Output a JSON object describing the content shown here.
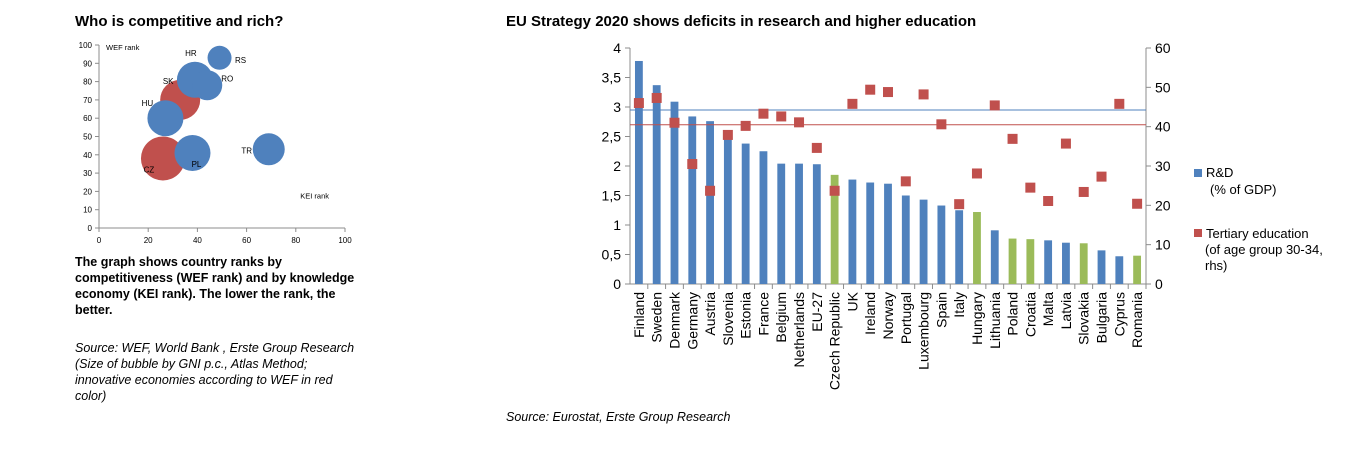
{
  "left_panel": {
    "title": "Who is competitive and rich?",
    "description": "The graph shows country ranks by competitiveness (WEF rank) and by knowledge economy (KEI rank). The lower the rank, the better.",
    "source": "Source: WEF, World Bank , Erste Group Research (Size of bubble by GNI p.c., Atlas Method; innovative economies according to WEF in red color)"
  },
  "right_panel": {
    "title": "EU Strategy 2020 shows deficits in research and higher education",
    "source": "Source: Eurostat, Erste Group Research"
  },
  "chart_data": [
    {
      "type": "scatter",
      "title": "Who is competitive and rich?",
      "xlabel": "KEI rank",
      "ylabel": "WEF rank",
      "xlim": [
        0,
        100
      ],
      "ylim": [
        0,
        100
      ],
      "x_ticks": [
        "0",
        "20",
        "40",
        "60",
        "80",
        "100"
      ],
      "y_ticks": [
        "0",
        "10",
        "20",
        "30",
        "40",
        "50",
        "60",
        "70",
        "80",
        "90",
        "100"
      ],
      "colors": {
        "innovative": "#c0504d",
        "other": "#4f81bd"
      },
      "points": [
        {
          "label": "CZ",
          "x": 26,
          "y": 38,
          "size": 22,
          "innovative": true
        },
        {
          "label": "SK",
          "x": 33,
          "y": 70,
          "size": 20,
          "innovative": true
        },
        {
          "label": "HU",
          "x": 27,
          "y": 60,
          "size": 18,
          "innovative": false
        },
        {
          "label": "PL",
          "x": 38,
          "y": 41,
          "size": 18,
          "innovative": false
        },
        {
          "label": "HR",
          "x": 39,
          "y": 81,
          "size": 18,
          "innovative": false
        },
        {
          "label": "RO",
          "x": 44,
          "y": 78,
          "size": 15,
          "innovative": false
        },
        {
          "label": "RS",
          "x": 49,
          "y": 93,
          "size": 12,
          "innovative": false
        },
        {
          "label": "TR",
          "x": 69,
          "y": 43,
          "size": 16,
          "innovative": false
        }
      ]
    },
    {
      "type": "bar",
      "title": "EU Strategy 2020 shows deficits in research and higher education",
      "categories": [
        "Finland",
        "Sweden",
        "Denmark",
        "Germany",
        "Austria",
        "Slovenia",
        "Estonia",
        "France",
        "Belgium",
        "Netherlands",
        "EU-27",
        "Czech Republic",
        "UK",
        "Ireland",
        "Norway",
        "Portugal",
        "Luxembourg",
        "Spain",
        "Italy",
        "Hungary",
        "Lithuania",
        "Poland",
        "Croatia",
        "Malta",
        "Latvia",
        "Slovakia",
        "Bulgaria",
        "Cyprus",
        "Romania"
      ],
      "highlight": [
        "Czech Republic",
        "Hungary",
        "Poland",
        "Croatia",
        "Slovakia",
        "Romania"
      ],
      "left_axis": {
        "ylim": [
          0,
          4
        ],
        "ticks": [
          "0",
          "0,5",
          "1",
          "1,5",
          "2",
          "2,5",
          "3",
          "3,5",
          "4"
        ]
      },
      "right_axis": {
        "ylim": [
          0,
          60
        ],
        "ticks": [
          "0",
          "10",
          "20",
          "30",
          "40",
          "50",
          "60"
        ]
      },
      "reference_lines": {
        "rd_target": 2.95,
        "tertiary_target": 40.5
      },
      "colors": {
        "bar": "#4f81bd",
        "bar_highlight": "#9bbb59",
        "marker": "#c0504d",
        "rd_line": "#4f81bd",
        "tertiary_line": "#c0504d"
      },
      "series": [
        {
          "name": "R&D (% of GDP)",
          "axis": "left",
          "kind": "bar",
          "values": [
            3.78,
            3.37,
            3.09,
            2.84,
            2.76,
            2.47,
            2.38,
            2.25,
            2.04,
            2.04,
            2.03,
            1.85,
            1.77,
            1.72,
            1.7,
            1.5,
            1.43,
            1.33,
            1.25,
            1.22,
            0.91,
            0.77,
            0.76,
            0.74,
            0.7,
            0.69,
            0.57,
            0.47,
            0.48
          ]
        },
        {
          "name": "Tertiary education (of age group 30-34, rhs)",
          "axis": "right",
          "kind": "marker",
          "values": [
            46.0,
            47.3,
            41.0,
            30.5,
            23.7,
            37.9,
            40.2,
            43.3,
            42.6,
            41.1,
            34.6,
            23.7,
            45.8,
            49.4,
            48.8,
            26.1,
            48.2,
            40.6,
            20.3,
            28.1,
            45.4,
            36.9,
            24.5,
            21.1,
            35.7,
            23.4,
            27.3,
            45.8,
            20.4
          ]
        }
      ],
      "legend": {
        "position": "right",
        "entries": [
          {
            "label_lines": [
              "R&D",
              "(% of GDP)"
            ]
          },
          {
            "label_lines": [
              "Tertiary education",
              "(of age group 30-34,",
              "rhs)"
            ]
          }
        ]
      }
    }
  ]
}
